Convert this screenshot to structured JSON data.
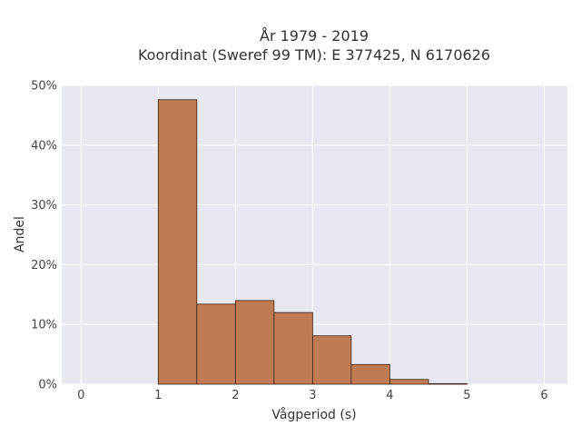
{
  "chart_data": {
    "type": "bar",
    "title": "År 1979 - 2019",
    "subtitle": "Koordinat (Sweref 99 TM): E 377425, N 6170626",
    "xlabel": "Vågperiod (s)",
    "ylabel": "Andel",
    "xlim": [
      -0.25,
      6.3
    ],
    "ylim": [
      0,
      50
    ],
    "x_ticks": [
      0,
      1,
      2,
      3,
      4,
      5,
      6
    ],
    "x_tick_labels": [
      "0",
      "1",
      "2",
      "3",
      "4",
      "5",
      "6"
    ],
    "y_ticks": [
      0,
      10,
      20,
      30,
      40,
      50
    ],
    "y_tick_labels": [
      "0%",
      "10%",
      "20%",
      "30%",
      "40%",
      "50%"
    ],
    "grid": true,
    "bins": [
      {
        "start": 1.0,
        "end": 1.5,
        "value": 47.6
      },
      {
        "start": 1.5,
        "end": 2.0,
        "value": 13.4
      },
      {
        "start": 2.0,
        "end": 2.5,
        "value": 14.0
      },
      {
        "start": 2.5,
        "end": 3.0,
        "value": 12.0
      },
      {
        "start": 3.0,
        "end": 3.5,
        "value": 8.1
      },
      {
        "start": 3.5,
        "end": 4.0,
        "value": 3.3
      },
      {
        "start": 4.0,
        "end": 4.5,
        "value": 0.8
      },
      {
        "start": 4.5,
        "end": 5.0,
        "value": 0.1
      }
    ],
    "colors": {
      "bar_fill": "#bf7b54",
      "bar_stroke": "#3b2314",
      "plot_bg": "#e8e8f1",
      "grid": "#ffffff"
    }
  }
}
